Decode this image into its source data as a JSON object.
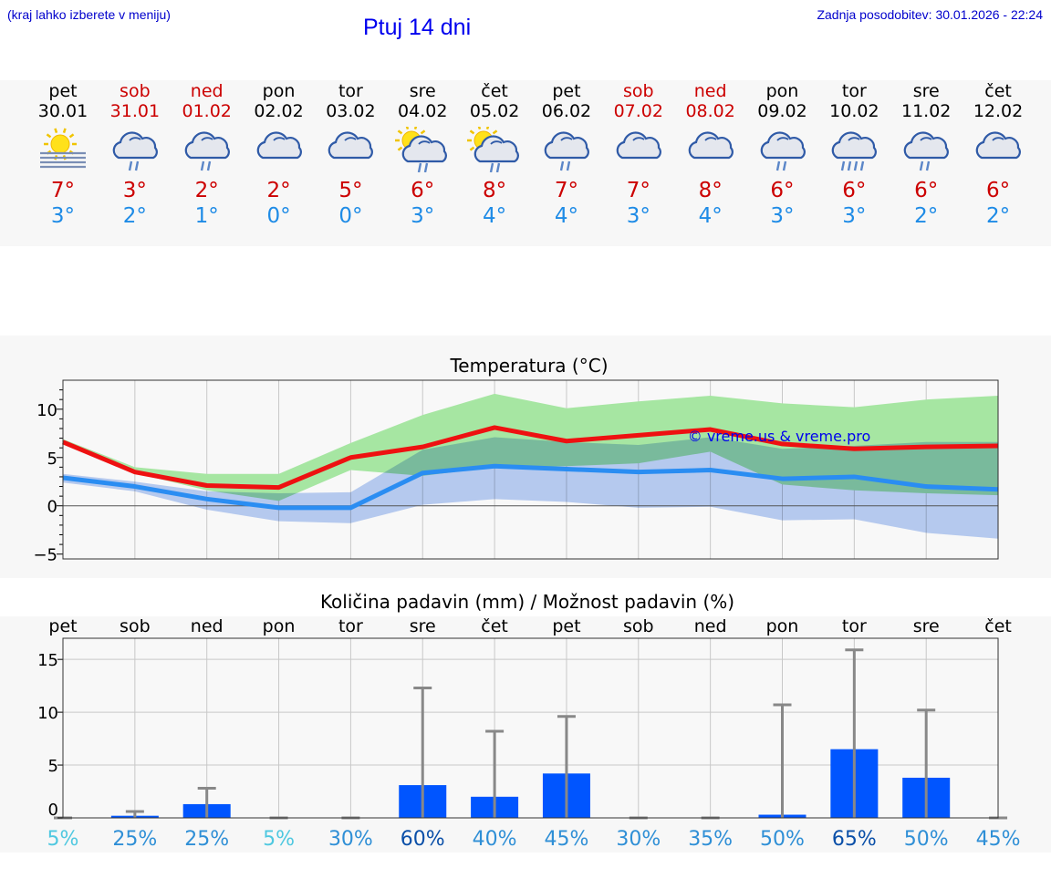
{
  "header": {
    "hint": "(kraj lahko izberete v meniju)",
    "title": "Ptuj 14 dni",
    "updated": "Zadnja posodobitev: 30.01.2026 - 22:24"
  },
  "days": [
    {
      "name": "pet",
      "date": "30.01",
      "weekend": false,
      "icon": "sun-fog-icon",
      "max": "7°",
      "min": "3°"
    },
    {
      "name": "sob",
      "date": "31.01",
      "weekend": true,
      "icon": "cloud-rain-icon",
      "max": "3°",
      "min": "2°"
    },
    {
      "name": "ned",
      "date": "01.02",
      "weekend": true,
      "icon": "cloud-rain-icon",
      "max": "2°",
      "min": "1°"
    },
    {
      "name": "pon",
      "date": "02.02",
      "weekend": false,
      "icon": "cloud-icon",
      "max": "2°",
      "min": "0°"
    },
    {
      "name": "tor",
      "date": "03.02",
      "weekend": false,
      "icon": "cloud-icon",
      "max": "5°",
      "min": "0°"
    },
    {
      "name": "sre",
      "date": "04.02",
      "weekend": false,
      "icon": "sun-cloud-rain-icon",
      "max": "6°",
      "min": "3°"
    },
    {
      "name": "čet",
      "date": "05.02",
      "weekend": false,
      "icon": "sun-cloud-rain-icon",
      "max": "8°",
      "min": "4°"
    },
    {
      "name": "pet",
      "date": "06.02",
      "weekend": false,
      "icon": "cloud-rain-icon",
      "max": "7°",
      "min": "4°"
    },
    {
      "name": "sob",
      "date": "07.02",
      "weekend": true,
      "icon": "cloud-icon",
      "max": "7°",
      "min": "3°"
    },
    {
      "name": "ned",
      "date": "08.02",
      "weekend": true,
      "icon": "cloud-icon",
      "max": "8°",
      "min": "4°"
    },
    {
      "name": "pon",
      "date": "09.02",
      "weekend": false,
      "icon": "cloud-rain-icon",
      "max": "6°",
      "min": "3°"
    },
    {
      "name": "tor",
      "date": "10.02",
      "weekend": false,
      "icon": "cloud-heavy-rain-icon",
      "max": "6°",
      "min": "3°"
    },
    {
      "name": "sre",
      "date": "11.02",
      "weekend": false,
      "icon": "cloud-rain-icon",
      "max": "6°",
      "min": "2°"
    },
    {
      "name": "čet",
      "date": "12.02",
      "weekend": false,
      "icon": "cloud-icon",
      "max": "6°",
      "min": "2°"
    }
  ],
  "colors": {
    "weekend": "#cc0000",
    "weekday": "#000000",
    "max": "#cc0000",
    "min": "#1e8be6"
  },
  "chart_data": [
    {
      "type": "line",
      "title": "Temperatura (°C)",
      "watermark": "© vreme.us & vreme.pro",
      "x": [
        0,
        1,
        2,
        3,
        4,
        5,
        6,
        7,
        8,
        9,
        10,
        11,
        12,
        13
      ],
      "ylim": [
        -5.5,
        13
      ],
      "yticks": [
        -5,
        0,
        5,
        10
      ],
      "ytick_labels": [
        "−5",
        "0",
        "5",
        "10"
      ],
      "series": [
        {
          "name": "max",
          "color": "#ee1111",
          "values": [
            6.6,
            3.5,
            2.1,
            1.9,
            5.0,
            6.1,
            8.1,
            6.7,
            7.3,
            7.9,
            6.4,
            5.9,
            6.1,
            6.2
          ]
        },
        {
          "name": "min",
          "color": "#2a8df2",
          "values": [
            2.9,
            2.0,
            0.7,
            -0.2,
            -0.2,
            3.4,
            4.1,
            3.8,
            3.5,
            3.7,
            2.8,
            3.0,
            2.0,
            1.7
          ]
        }
      ],
      "bands": [
        {
          "name": "max-range",
          "color": "#a6e6a2",
          "upper": [
            6.9,
            4.0,
            3.3,
            3.3,
            6.5,
            9.4,
            11.6,
            10.1,
            10.8,
            11.4,
            10.6,
            10.2,
            11.0,
            11.4
          ],
          "lower": [
            6.4,
            3.4,
            1.6,
            0.5,
            3.7,
            3.1,
            4.0,
            4.1,
            4.4,
            5.6,
            2.2,
            1.6,
            1.3,
            1.1
          ]
        },
        {
          "name": "min-range",
          "color": "#a9c3f3",
          "upper": [
            3.3,
            2.5,
            1.5,
            1.3,
            1.4,
            5.8,
            7.1,
            6.6,
            6.3,
            7.1,
            5.9,
            6.2,
            6.6,
            6.6
          ],
          "lower": [
            2.4,
            1.5,
            -0.4,
            -1.6,
            -1.8,
            0.1,
            0.7,
            0.4,
            -0.2,
            -0.1,
            -1.5,
            -1.4,
            -2.8,
            -3.4
          ]
        }
      ]
    },
    {
      "type": "bar",
      "title": "Količina padavin (mm) / Možnost padavin (%)",
      "categories": [
        "pet",
        "sob",
        "ned",
        "pon",
        "tor",
        "sre",
        "čet",
        "pet",
        "sob",
        "ned",
        "pon",
        "tor",
        "sre",
        "čet"
      ],
      "values": [
        0,
        0.2,
        1.3,
        0,
        0,
        3.1,
        2.0,
        4.2,
        0,
        0,
        0.3,
        6.5,
        3.8,
        0
      ],
      "error_upper": [
        0,
        0.6,
        2.8,
        0,
        0,
        12.3,
        8.2,
        9.6,
        0,
        0,
        10.7,
        15.9,
        10.2,
        0
      ],
      "ylim": [
        0,
        17
      ],
      "yticks": [
        0,
        5,
        10,
        15
      ],
      "probability": [
        "5%",
        "25%",
        "25%",
        "5%",
        "30%",
        "60%",
        "40%",
        "45%",
        "30%",
        "35%",
        "50%",
        "65%",
        "50%",
        "45%"
      ],
      "probability_values": [
        5,
        25,
        25,
        5,
        30,
        60,
        40,
        45,
        30,
        35,
        50,
        65,
        50,
        45
      ],
      "bar_color": "#0055ff",
      "error_color": "#888888"
    }
  ]
}
